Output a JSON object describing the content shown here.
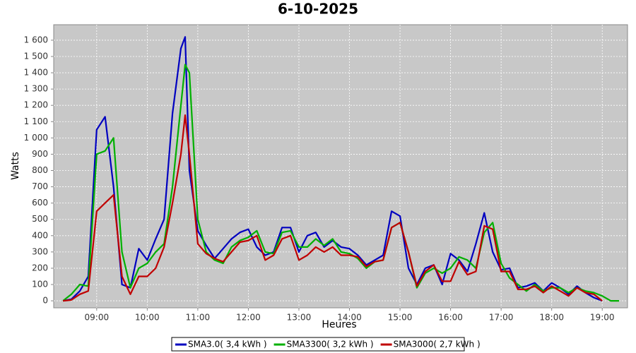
{
  "chart_data": {
    "type": "line",
    "title": "6-10-2025",
    "x_label": "Heures",
    "y_label": "Watts",
    "x": [
      "08:20",
      "08:30",
      "08:40",
      "08:50",
      "09:00",
      "09:10",
      "09:20",
      "09:30",
      "09:40",
      "09:50",
      "10:00",
      "10:10",
      "10:20",
      "10:30",
      "10:40",
      "10:45",
      "10:50",
      "11:00",
      "11:10",
      "11:20",
      "11:30",
      "11:40",
      "11:50",
      "12:00",
      "12:10",
      "12:20",
      "12:30",
      "12:40",
      "12:50",
      "13:00",
      "13:10",
      "13:20",
      "13:30",
      "13:40",
      "13:50",
      "14:00",
      "14:10",
      "14:20",
      "14:30",
      "14:40",
      "14:50",
      "15:00",
      "15:10",
      "15:20",
      "15:30",
      "15:40",
      "15:50",
      "16:00",
      "16:10",
      "16:20",
      "16:30",
      "16:40",
      "16:50",
      "17:00",
      "17:10",
      "17:20",
      "17:30",
      "17:40",
      "17:50",
      "18:00",
      "18:10",
      "18:20",
      "18:30",
      "18:40",
      "18:50",
      "19:00",
      "19:10",
      "19:20"
    ],
    "series": [
      {
        "name": "SMA3.0( 3,4 kWh )",
        "color": "#0000c0",
        "values": [
          0,
          10,
          60,
          150,
          1050,
          1130,
          700,
          100,
          80,
          320,
          250,
          380,
          500,
          1150,
          1550,
          1620,
          800,
          430,
          340,
          260,
          320,
          380,
          420,
          440,
          330,
          280,
          300,
          450,
          450,
          300,
          400,
          420,
          330,
          370,
          330,
          320,
          280,
          220,
          250,
          280,
          550,
          520,
          200,
          100,
          200,
          220,
          100,
          290,
          250,
          180,
          350,
          540,
          300,
          190,
          200,
          80,
          90,
          110,
          60,
          110,
          80,
          40,
          90,
          50,
          20,
          0,
          null,
          null
        ]
      },
      {
        "name": "SMA3300( 3,2 kWh )",
        "color": "#00b000",
        "values": [
          0,
          40,
          100,
          90,
          900,
          920,
          1000,
          300,
          80,
          200,
          230,
          300,
          350,
          700,
          1200,
          1450,
          1400,
          500,
          300,
          250,
          230,
          330,
          370,
          390,
          430,
          300,
          290,
          420,
          430,
          330,
          330,
          380,
          340,
          380,
          300,
          290,
          260,
          200,
          240,
          250,
          450,
          480,
          300,
          80,
          170,
          200,
          170,
          200,
          270,
          250,
          200,
          420,
          480,
          230,
          140,
          100,
          60,
          100,
          60,
          80,
          80,
          50,
          80,
          60,
          50,
          30,
          0,
          0
        ]
      },
      {
        "name": "SMA3000( 2,7 kWh )",
        "color": "#c00000",
        "values": [
          0,
          5,
          40,
          60,
          550,
          600,
          650,
          150,
          40,
          150,
          150,
          200,
          330,
          600,
          900,
          1140,
          900,
          350,
          290,
          260,
          240,
          300,
          360,
          370,
          400,
          250,
          280,
          380,
          400,
          250,
          280,
          330,
          300,
          330,
          280,
          280,
          270,
          210,
          240,
          250,
          450,
          480,
          300,
          90,
          180,
          220,
          120,
          120,
          240,
          160,
          180,
          460,
          440,
          180,
          180,
          70,
          70,
          90,
          50,
          90,
          60,
          30,
          80,
          50,
          40,
          0,
          null,
          null
        ]
      }
    ],
    "xlim": [
      "08:09",
      "19:30"
    ],
    "xticks": [
      "09:00",
      "10:00",
      "11:00",
      "12:00",
      "13:00",
      "14:00",
      "15:00",
      "16:00",
      "17:00",
      "18:00",
      "19:00"
    ],
    "ylim": [
      -43,
      1695
    ],
    "yticks": [
      0,
      100,
      200,
      300,
      400,
      500,
      600,
      700,
      800,
      900,
      {
        "value": 1000,
        "label": "1 000"
      },
      {
        "value": 1100,
        "label": "1 100"
      },
      {
        "value": 1200,
        "label": "1 200"
      },
      {
        "value": 1300,
        "label": "1 300"
      },
      {
        "value": 1400,
        "label": "1 400"
      },
      {
        "value": 1500,
        "label": "1 500"
      },
      {
        "value": 1600,
        "label": "1 600"
      }
    ],
    "grid": true,
    "legend": "bottom"
  }
}
